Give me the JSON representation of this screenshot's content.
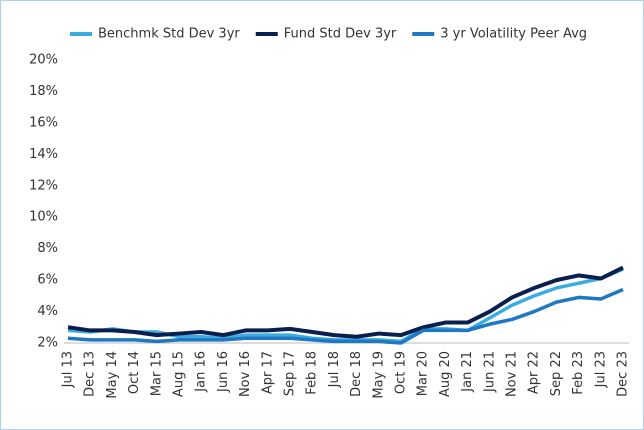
{
  "chart_data": {
    "type": "line",
    "categories": [
      "Jul 13",
      "Dec 13",
      "May 14",
      "Oct 14",
      "Mar 15",
      "Aug 15",
      "Jan 16",
      "Jun 16",
      "Nov 16",
      "Apr 17",
      "Sep 17",
      "Feb 18",
      "Jul 18",
      "Dec 18",
      "May 19",
      "Oct 19",
      "Mar 20",
      "Aug 20",
      "Jan 21",
      "Jun 21",
      "Nov 21",
      "Apr 22",
      "Sep 22",
      "Feb 23",
      "Jul 23",
      "Dec 23"
    ],
    "series": [
      {
        "name": "Benchmk Std Dev 3yr",
        "color": "#3aade0",
        "values": [
          2.8,
          2.7,
          2.9,
          2.7,
          2.7,
          2.4,
          2.4,
          2.3,
          2.5,
          2.5,
          2.5,
          2.3,
          2.2,
          2.2,
          2.2,
          2.1,
          2.9,
          2.9,
          2.8,
          3.6,
          4.4,
          5.0,
          5.5,
          5.8,
          6.1,
          6.7
        ]
      },
      {
        "name": "Fund Std Dev 3yr",
        "color": "#0b1f4f",
        "values": [
          3.0,
          2.8,
          2.8,
          2.7,
          2.5,
          2.6,
          2.7,
          2.5,
          2.8,
          2.8,
          2.9,
          2.7,
          2.5,
          2.4,
          2.6,
          2.5,
          3.0,
          3.3,
          3.3,
          4.0,
          4.9,
          5.5,
          6.0,
          6.3,
          6.1,
          6.8
        ]
      },
      {
        "name": "3 yr Volatility Peer Avg",
        "color": "#1f78c1",
        "values": [
          2.3,
          2.2,
          2.2,
          2.2,
          2.1,
          2.2,
          2.2,
          2.2,
          2.3,
          2.3,
          2.3,
          2.2,
          2.1,
          2.1,
          2.1,
          2.0,
          2.8,
          2.8,
          2.8,
          3.2,
          3.5,
          4.0,
          4.6,
          4.9,
          4.8,
          5.4
        ]
      }
    ],
    "ylim": [
      2,
      20
    ],
    "yticks": [
      {
        "value": 2,
        "label": "2%"
      },
      {
        "value": 4,
        "label": "4%"
      },
      {
        "value": 6,
        "label": "6%"
      },
      {
        "value": 8,
        "label": "8%"
      },
      {
        "value": 10,
        "label": "10%"
      },
      {
        "value": 12,
        "label": "12%"
      },
      {
        "value": 14,
        "label": "14%"
      },
      {
        "value": 16,
        "label": "16%"
      },
      {
        "value": 18,
        "label": "18%"
      },
      {
        "value": 20,
        "label": "20%"
      }
    ],
    "grid": false
  }
}
